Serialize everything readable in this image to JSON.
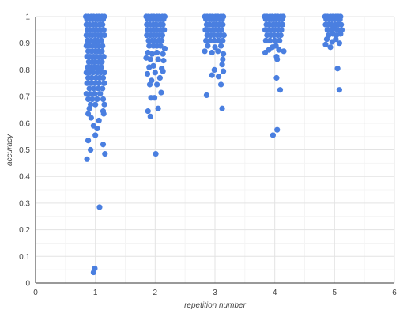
{
  "chart_data": {
    "type": "scatter",
    "title": "",
    "xlabel": "repetition number",
    "ylabel": "accuracy",
    "xlim": [
      0,
      6
    ],
    "ylim": [
      0,
      1
    ],
    "x_ticks": [
      0,
      1,
      2,
      3,
      4,
      5,
      6
    ],
    "y_ticks": [
      0,
      0.1,
      0.2,
      0.3,
      0.4,
      0.5,
      0.6,
      0.7,
      0.8,
      0.9,
      1
    ],
    "y_tick_labels": [
      "0",
      "0.1",
      "0.2",
      "0.3",
      "0.4",
      "0.5",
      "0.6",
      "0.7",
      "0.8",
      "0.9",
      "1"
    ],
    "grid": true,
    "legend": "none",
    "point_color": "#4a7fe0",
    "series": [
      {
        "points": [
          [
            0.84,
            1.0
          ],
          [
            0.88,
            1.0
          ],
          [
            0.93,
            1.0
          ],
          [
            0.97,
            1.0
          ],
          [
            1.02,
            1.0
          ],
          [
            1.06,
            1.0
          ],
          [
            1.11,
            1.0
          ],
          [
            1.15,
            1.0
          ],
          [
            0.86,
            0.99
          ],
          [
            0.91,
            0.99
          ],
          [
            0.95,
            0.99
          ],
          [
            1.0,
            0.99
          ],
          [
            1.04,
            0.99
          ],
          [
            1.09,
            0.99
          ],
          [
            1.13,
            0.99
          ],
          [
            0.85,
            0.97
          ],
          [
            0.9,
            0.97
          ],
          [
            0.96,
            0.97
          ],
          [
            1.01,
            0.97
          ],
          [
            1.07,
            0.97
          ],
          [
            1.12,
            0.97
          ],
          [
            0.87,
            0.95
          ],
          [
            0.92,
            0.95
          ],
          [
            0.98,
            0.95
          ],
          [
            1.03,
            0.95
          ],
          [
            1.08,
            0.95
          ],
          [
            1.14,
            0.95
          ],
          [
            0.85,
            0.93
          ],
          [
            0.9,
            0.93
          ],
          [
            0.95,
            0.93
          ],
          [
            1.0,
            0.93
          ],
          [
            1.05,
            0.93
          ],
          [
            1.1,
            0.93
          ],
          [
            1.15,
            0.93
          ],
          [
            0.87,
            0.91
          ],
          [
            0.93,
            0.91
          ],
          [
            0.99,
            0.91
          ],
          [
            1.04,
            0.91
          ],
          [
            1.1,
            0.91
          ],
          [
            0.85,
            0.89
          ],
          [
            0.9,
            0.89
          ],
          [
            0.96,
            0.89
          ],
          [
            1.01,
            0.89
          ],
          [
            1.06,
            0.89
          ],
          [
            1.12,
            0.89
          ],
          [
            0.88,
            0.87
          ],
          [
            0.94,
            0.87
          ],
          [
            1.0,
            0.87
          ],
          [
            1.05,
            0.87
          ],
          [
            1.11,
            0.87
          ],
          [
            0.86,
            0.85
          ],
          [
            0.91,
            0.85
          ],
          [
            0.97,
            0.85
          ],
          [
            1.02,
            0.85
          ],
          [
            1.08,
            0.85
          ],
          [
            1.14,
            0.85
          ],
          [
            0.89,
            0.83
          ],
          [
            0.95,
            0.83
          ],
          [
            1.0,
            0.83
          ],
          [
            1.06,
            0.83
          ],
          [
            1.11,
            0.83
          ],
          [
            0.87,
            0.81
          ],
          [
            0.92,
            0.81
          ],
          [
            0.98,
            0.81
          ],
          [
            1.04,
            0.81
          ],
          [
            1.1,
            0.81
          ],
          [
            0.85,
            0.79
          ],
          [
            0.9,
            0.79
          ],
          [
            0.96,
            0.79
          ],
          [
            1.03,
            0.79
          ],
          [
            1.09,
            0.79
          ],
          [
            1.15,
            0.79
          ],
          [
            0.88,
            0.77
          ],
          [
            0.94,
            0.77
          ],
          [
            1.01,
            0.77
          ],
          [
            1.07,
            0.77
          ],
          [
            1.13,
            0.77
          ],
          [
            0.86,
            0.75
          ],
          [
            0.93,
            0.75
          ],
          [
            1.0,
            0.75
          ],
          [
            1.06,
            0.75
          ],
          [
            1.15,
            0.75
          ],
          [
            0.9,
            0.73
          ],
          [
            0.97,
            0.73
          ],
          [
            1.05,
            0.73
          ],
          [
            1.12,
            0.73
          ],
          [
            0.85,
            0.71
          ],
          [
            0.91,
            0.71
          ],
          [
            0.99,
            0.71
          ],
          [
            1.08,
            0.71
          ],
          [
            0.88,
            0.69
          ],
          [
            0.95,
            0.69
          ],
          [
            1.03,
            0.69
          ],
          [
            1.13,
            0.69
          ],
          [
            0.92,
            0.67
          ],
          [
            1.0,
            0.67
          ],
          [
            1.15,
            0.67
          ],
          [
            0.9,
            0.655
          ],
          [
            1.13,
            0.645
          ],
          [
            0.88,
            0.635
          ],
          [
            1.14,
            0.635
          ],
          [
            0.93,
            0.62
          ],
          [
            1.06,
            0.61
          ],
          [
            0.97,
            0.59
          ],
          [
            1.03,
            0.58
          ],
          [
            1.0,
            0.555
          ],
          [
            0.88,
            0.535
          ],
          [
            1.13,
            0.52
          ],
          [
            0.92,
            0.5
          ],
          [
            1.16,
            0.485
          ],
          [
            0.86,
            0.465
          ],
          [
            1.07,
            0.285
          ],
          [
            0.99,
            0.055
          ],
          [
            0.97,
            0.04
          ],
          [
            1.85,
            1.0
          ],
          [
            1.89,
            1.0
          ],
          [
            1.94,
            1.0
          ],
          [
            1.98,
            1.0
          ],
          [
            2.03,
            1.0
          ],
          [
            2.07,
            1.0
          ],
          [
            2.12,
            1.0
          ],
          [
            2.16,
            1.0
          ],
          [
            1.87,
            0.99
          ],
          [
            1.92,
            0.99
          ],
          [
            1.96,
            0.99
          ],
          [
            2.01,
            0.99
          ],
          [
            2.05,
            0.99
          ],
          [
            2.1,
            0.99
          ],
          [
            2.14,
            0.99
          ],
          [
            1.86,
            0.97
          ],
          [
            1.91,
            0.97
          ],
          [
            1.97,
            0.97
          ],
          [
            2.02,
            0.97
          ],
          [
            2.08,
            0.97
          ],
          [
            2.13,
            0.97
          ],
          [
            1.88,
            0.95
          ],
          [
            1.94,
            0.95
          ],
          [
            1.99,
            0.95
          ],
          [
            2.04,
            0.95
          ],
          [
            2.1,
            0.95
          ],
          [
            2.15,
            0.95
          ],
          [
            1.86,
            0.93
          ],
          [
            1.92,
            0.93
          ],
          [
            1.97,
            0.93
          ],
          [
            2.02,
            0.93
          ],
          [
            2.07,
            0.93
          ],
          [
            2.12,
            0.93
          ],
          [
            1.89,
            0.91
          ],
          [
            1.95,
            0.91
          ],
          [
            2.0,
            0.91
          ],
          [
            2.06,
            0.91
          ],
          [
            2.11,
            0.91
          ],
          [
            1.9,
            0.89
          ],
          [
            1.97,
            0.89
          ],
          [
            2.03,
            0.89
          ],
          [
            2.09,
            0.89
          ],
          [
            2.16,
            0.88
          ],
          [
            1.88,
            0.865
          ],
          [
            1.95,
            0.86
          ],
          [
            2.03,
            0.865
          ],
          [
            2.13,
            0.86
          ],
          [
            1.85,
            0.845
          ],
          [
            1.92,
            0.84
          ],
          [
            2.05,
            0.84
          ],
          [
            2.14,
            0.835
          ],
          [
            1.9,
            0.81
          ],
          [
            1.97,
            0.815
          ],
          [
            2.11,
            0.805
          ],
          [
            1.87,
            0.785
          ],
          [
            2.0,
            0.79
          ],
          [
            2.13,
            0.795
          ],
          [
            1.94,
            0.76
          ],
          [
            2.08,
            0.77
          ],
          [
            1.91,
            0.745
          ],
          [
            2.03,
            0.745
          ],
          [
            2.1,
            0.715
          ],
          [
            1.93,
            0.695
          ],
          [
            1.99,
            0.695
          ],
          [
            2.05,
            0.655
          ],
          [
            1.88,
            0.645
          ],
          [
            1.92,
            0.625
          ],
          [
            2.01,
            0.485
          ],
          [
            2.83,
            1.0
          ],
          [
            2.87,
            1.0
          ],
          [
            2.92,
            1.0
          ],
          [
            2.96,
            1.0
          ],
          [
            3.01,
            1.0
          ],
          [
            3.05,
            1.0
          ],
          [
            3.1,
            1.0
          ],
          [
            3.14,
            1.0
          ],
          [
            2.85,
            0.99
          ],
          [
            2.9,
            0.99
          ],
          [
            2.94,
            0.99
          ],
          [
            2.99,
            0.99
          ],
          [
            3.03,
            0.99
          ],
          [
            3.08,
            0.99
          ],
          [
            3.12,
            0.99
          ],
          [
            2.86,
            0.97
          ],
          [
            2.91,
            0.97
          ],
          [
            2.97,
            0.97
          ],
          [
            3.02,
            0.97
          ],
          [
            3.07,
            0.97
          ],
          [
            3.13,
            0.97
          ],
          [
            2.84,
            0.95
          ],
          [
            2.89,
            0.95
          ],
          [
            2.95,
            0.95
          ],
          [
            3.0,
            0.95
          ],
          [
            3.06,
            0.95
          ],
          [
            3.11,
            0.95
          ],
          [
            2.87,
            0.93
          ],
          [
            2.93,
            0.93
          ],
          [
            2.98,
            0.93
          ],
          [
            3.04,
            0.93
          ],
          [
            3.09,
            0.93
          ],
          [
            3.15,
            0.93
          ],
          [
            2.85,
            0.91
          ],
          [
            2.92,
            0.91
          ],
          [
            2.99,
            0.91
          ],
          [
            3.06,
            0.91
          ],
          [
            3.13,
            0.91
          ],
          [
            2.88,
            0.89
          ],
          [
            3.0,
            0.885
          ],
          [
            3.1,
            0.89
          ],
          [
            2.83,
            0.87
          ],
          [
            2.95,
            0.865
          ],
          [
            3.05,
            0.87
          ],
          [
            3.14,
            0.86
          ],
          [
            3.13,
            0.84
          ],
          [
            3.12,
            0.82
          ],
          [
            2.99,
            0.8
          ],
          [
            3.14,
            0.795
          ],
          [
            2.95,
            0.78
          ],
          [
            3.06,
            0.775
          ],
          [
            3.1,
            0.745
          ],
          [
            2.86,
            0.705
          ],
          [
            3.12,
            0.655
          ],
          [
            3.83,
            1.0
          ],
          [
            3.87,
            1.0
          ],
          [
            3.92,
            1.0
          ],
          [
            3.96,
            1.0
          ],
          [
            4.01,
            1.0
          ],
          [
            4.05,
            1.0
          ],
          [
            4.1,
            1.0
          ],
          [
            4.14,
            1.0
          ],
          [
            3.85,
            0.99
          ],
          [
            3.9,
            0.99
          ],
          [
            3.94,
            0.99
          ],
          [
            3.99,
            0.99
          ],
          [
            4.03,
            0.99
          ],
          [
            4.08,
            0.99
          ],
          [
            4.12,
            0.99
          ],
          [
            3.86,
            0.97
          ],
          [
            3.91,
            0.97
          ],
          [
            3.97,
            0.97
          ],
          [
            4.02,
            0.97
          ],
          [
            4.07,
            0.97
          ],
          [
            4.13,
            0.97
          ],
          [
            3.84,
            0.95
          ],
          [
            3.9,
            0.95
          ],
          [
            3.95,
            0.95
          ],
          [
            4.0,
            0.95
          ],
          [
            4.06,
            0.95
          ],
          [
            4.11,
            0.95
          ],
          [
            3.87,
            0.93
          ],
          [
            3.93,
            0.93
          ],
          [
            3.99,
            0.93
          ],
          [
            4.05,
            0.93
          ],
          [
            4.1,
            0.93
          ],
          [
            3.85,
            0.91
          ],
          [
            3.92,
            0.91
          ],
          [
            4.0,
            0.91
          ],
          [
            4.08,
            0.91
          ],
          [
            4.02,
            0.89
          ],
          [
            3.96,
            0.885
          ],
          [
            4.07,
            0.875
          ],
          [
            3.9,
            0.875
          ],
          [
            3.84,
            0.865
          ],
          [
            4.15,
            0.87
          ],
          [
            4.03,
            0.85
          ],
          [
            4.04,
            0.84
          ],
          [
            4.03,
            0.77
          ],
          [
            4.09,
            0.725
          ],
          [
            4.04,
            0.575
          ],
          [
            3.97,
            0.555
          ],
          [
            4.84,
            1.0
          ],
          [
            4.88,
            1.0
          ],
          [
            4.93,
            1.0
          ],
          [
            4.97,
            1.0
          ],
          [
            5.02,
            1.0
          ],
          [
            5.06,
            1.0
          ],
          [
            5.1,
            1.0
          ],
          [
            4.86,
            0.99
          ],
          [
            4.91,
            0.99
          ],
          [
            4.96,
            0.99
          ],
          [
            5.0,
            0.99
          ],
          [
            5.05,
            0.99
          ],
          [
            5.09,
            0.99
          ],
          [
            4.85,
            0.97
          ],
          [
            4.9,
            0.97
          ],
          [
            4.95,
            0.97
          ],
          [
            5.01,
            0.97
          ],
          [
            5.07,
            0.97
          ],
          [
            5.11,
            0.97
          ],
          [
            4.88,
            0.95
          ],
          [
            4.94,
            0.95
          ],
          [
            5.0,
            0.955
          ],
          [
            5.05,
            0.95
          ],
          [
            5.12,
            0.95
          ],
          [
            4.9,
            0.93
          ],
          [
            4.97,
            0.935
          ],
          [
            5.03,
            0.93
          ],
          [
            5.1,
            0.935
          ],
          [
            4.87,
            0.915
          ],
          [
            4.96,
            0.905
          ],
          [
            5.02,
            0.915
          ],
          [
            5.08,
            0.9
          ],
          [
            4.85,
            0.895
          ],
          [
            4.93,
            0.885
          ],
          [
            5.05,
            0.805
          ],
          [
            5.08,
            0.725
          ]
        ]
      }
    ]
  }
}
